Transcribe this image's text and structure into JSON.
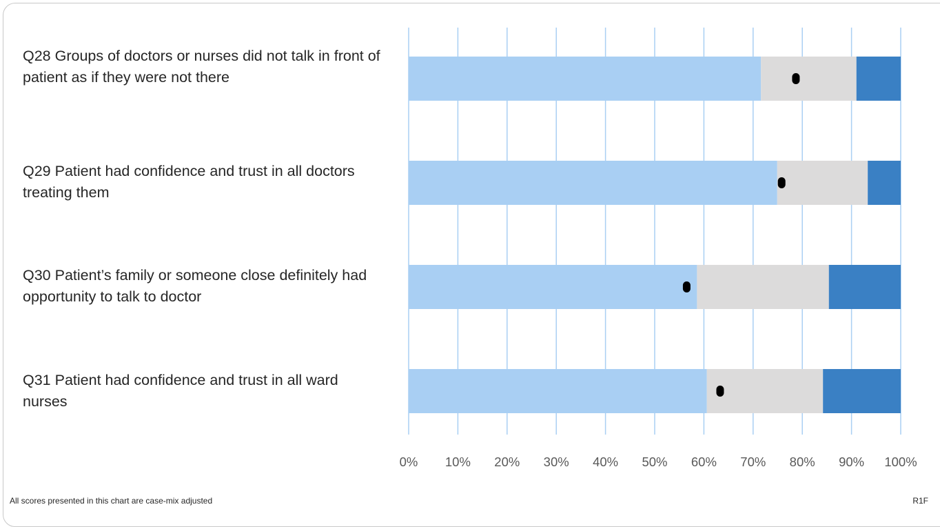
{
  "chart_data": {
    "type": "bar",
    "orientation": "horizontal",
    "stacked": true,
    "categories": [
      "Q28 Groups of doctors or nurses did not talk in front of patient as if they were not there",
      "Q29 Patient had confidence and trust in all doctors treating them",
      "Q30 Patient’s family or someone close definitely had opportunity to talk to doctor",
      "Q31 Patient had confidence and trust in all ward nurses"
    ],
    "series": [
      {
        "values": [
          71.6,
          74.9,
          58.6,
          60.6
        ],
        "color": "#a9cff3"
      },
      {
        "values": [
          19.4,
          18.4,
          26.8,
          23.6
        ],
        "color": "#dcdbdb"
      },
      {
        "values": [
          9.0,
          6.7,
          14.6,
          15.8
        ],
        "color": "#3a80c4"
      }
    ],
    "markers": {
      "shape": "rounded-dot",
      "color": "#000000",
      "values": [
        78.7,
        75.8,
        56.5,
        63.3
      ]
    },
    "xlim": [
      0,
      100
    ],
    "xticks": [
      "0%",
      "10%",
      "20%",
      "30%",
      "40%",
      "50%",
      "60%",
      "70%",
      "80%",
      "90%",
      "100%"
    ],
    "grid": true,
    "gridline_color": "#a9cff3",
    "legend": "none",
    "title": "",
    "xlabel": "",
    "ylabel": ""
  },
  "footer": {
    "note": "All scores presented in this chart are case-mix adjusted",
    "code": "R1F"
  }
}
